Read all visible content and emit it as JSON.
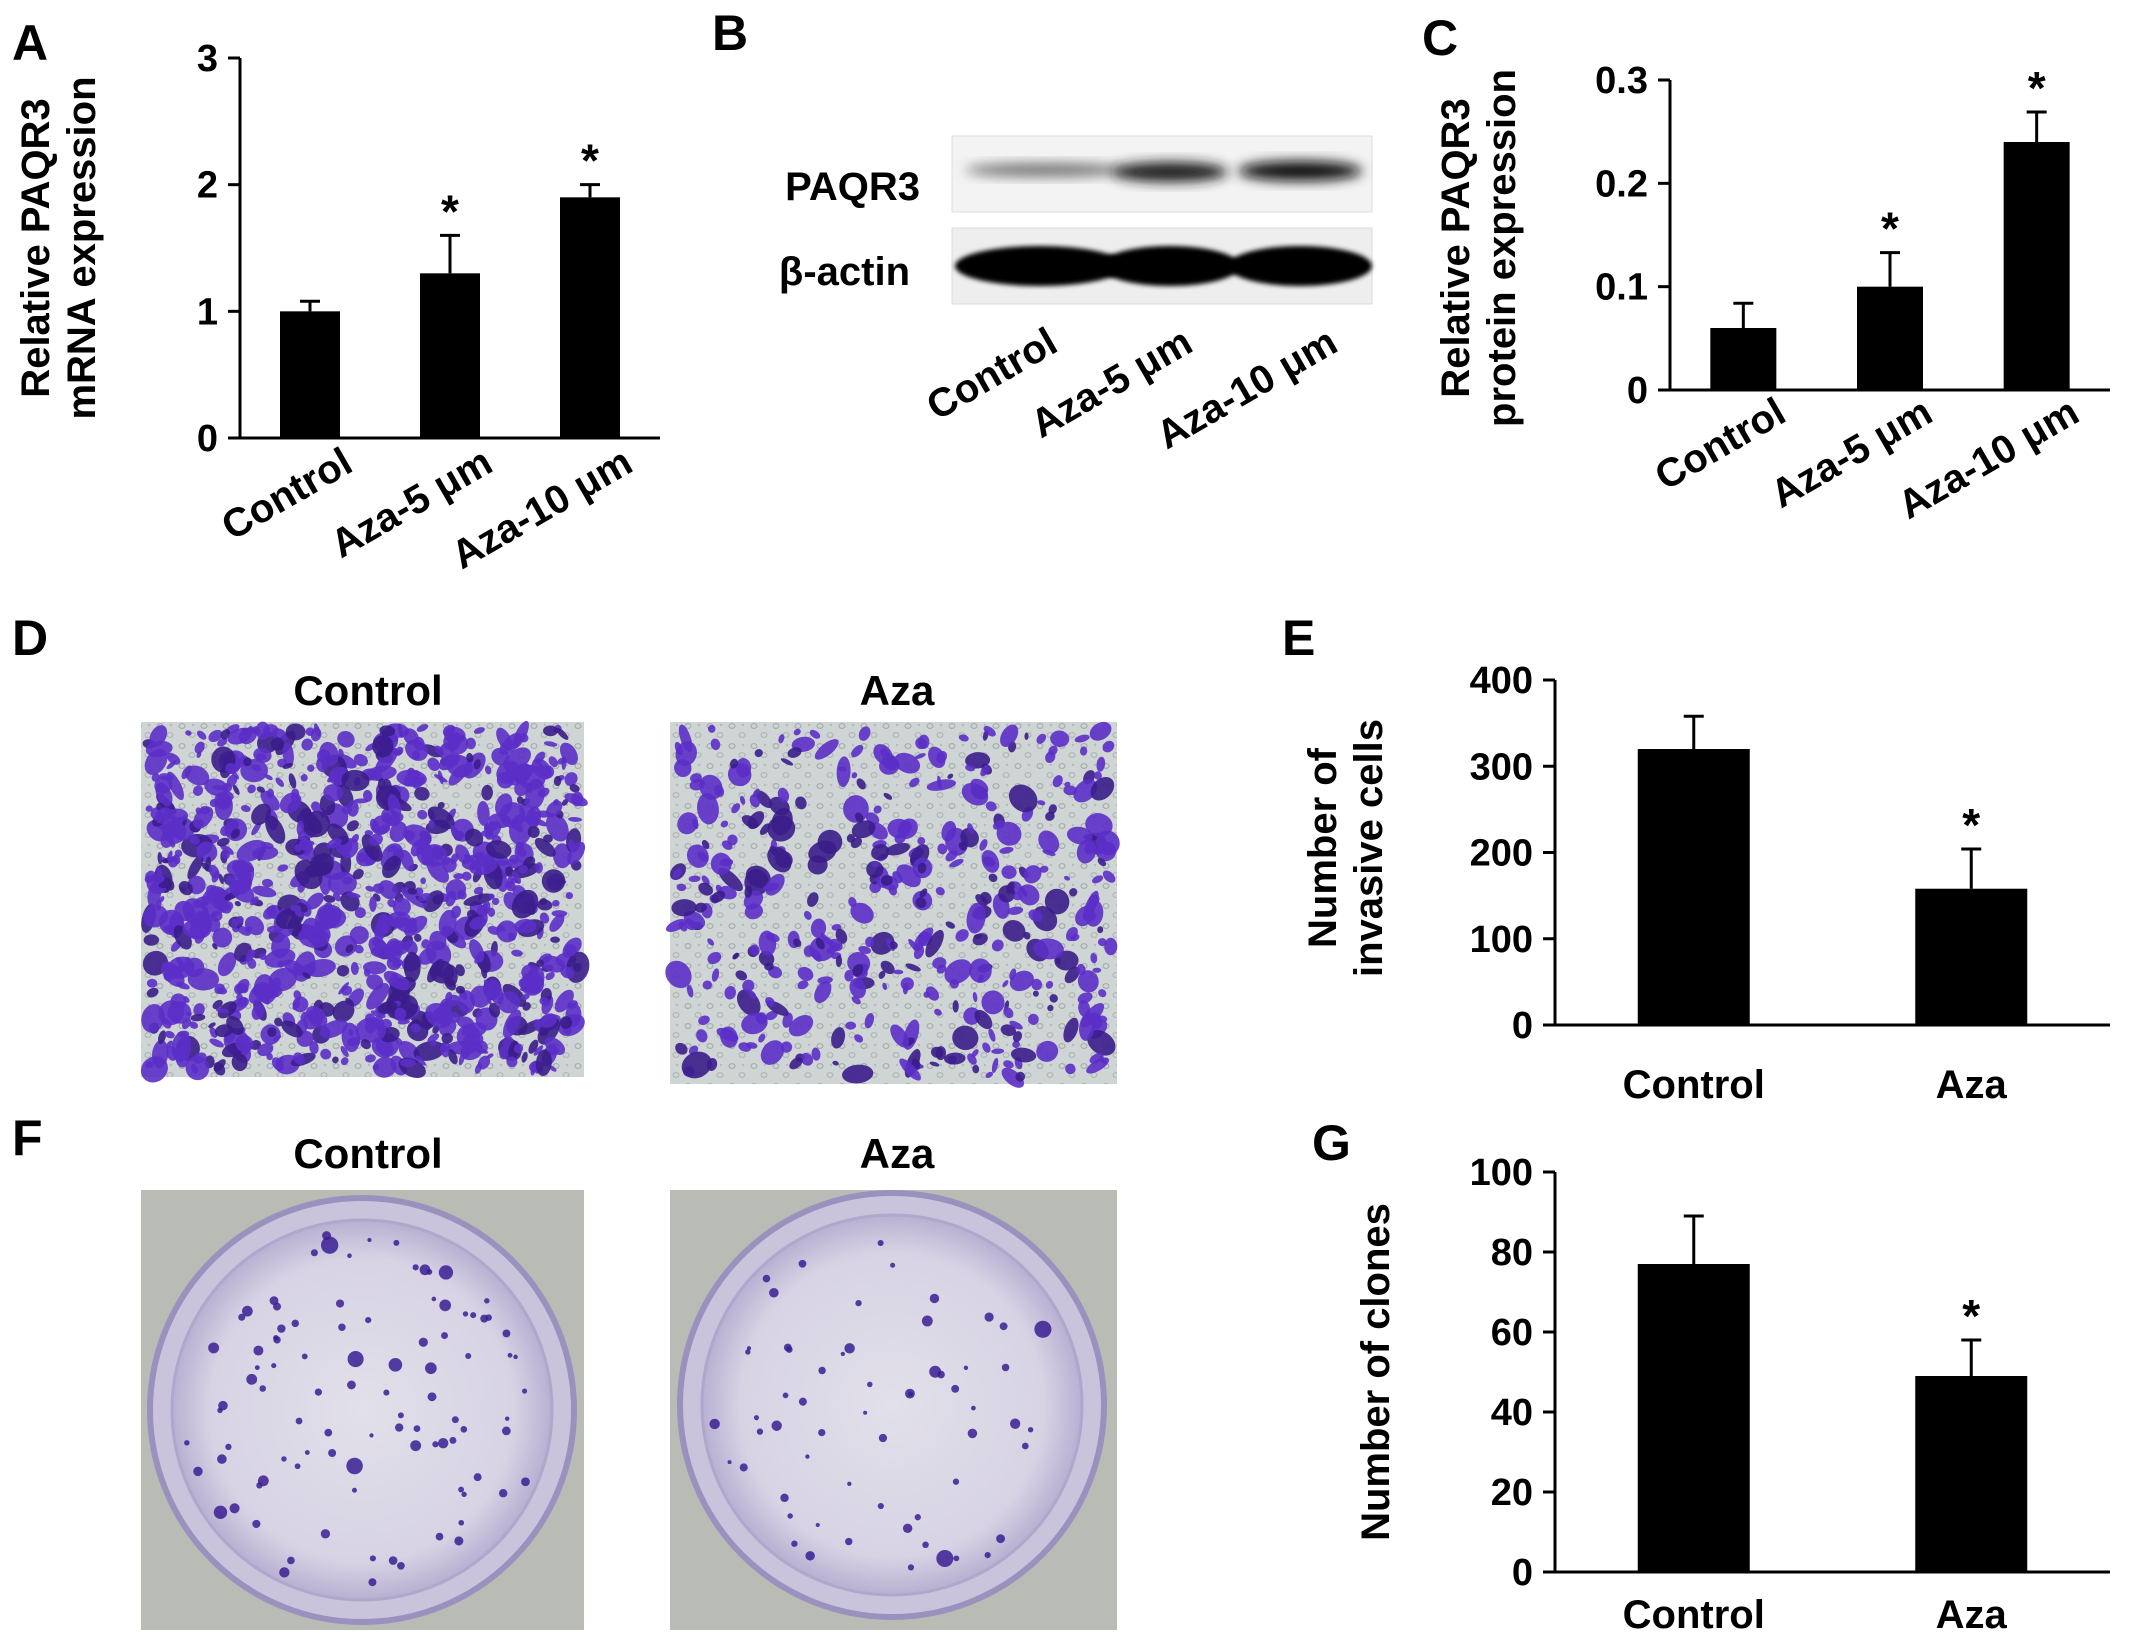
{
  "panels": [
    {
      "letter": "A"
    },
    {
      "letter": "B"
    },
    {
      "letter": "C"
    },
    {
      "letter": "D"
    },
    {
      "letter": "E"
    },
    {
      "letter": "F"
    },
    {
      "letter": "G"
    }
  ],
  "colors": {
    "bar": "#000000",
    "stain": "#5b2fc8",
    "stain_dark": "#3a1d8a",
    "background_cells": "#cdd3d2",
    "dish_bg": "#b7bab4",
    "dish": "#ddd9e8"
  },
  "western_blot": {
    "rows": [
      "PAQR3",
      "β-actin"
    ],
    "lanes": [
      "Control",
      "Aza-5 μm",
      "Aza-10 μm"
    ]
  },
  "image_panels": {
    "D": {
      "titles": [
        "Control",
        "Aza"
      ]
    },
    "F": {
      "titles": [
        "Control",
        "Aza"
      ]
    }
  },
  "chart_data": [
    {
      "id": "A",
      "type": "bar",
      "categories": [
        "Control",
        "Aza-5 μm",
        "Aza-10 μm"
      ],
      "values": [
        1.0,
        1.3,
        1.9
      ],
      "errors": [
        0.08,
        0.3,
        0.1
      ],
      "significance": [
        "",
        "*",
        "*"
      ],
      "ylabel_lines": [
        "Relative PAQR3",
        "mRNA expression"
      ],
      "ylim": [
        0,
        3
      ],
      "yticks": [
        "0",
        "1",
        "2",
        "3"
      ],
      "ytick_values": [
        0,
        1,
        2,
        3
      ],
      "rotated_labels": true
    },
    {
      "id": "C",
      "type": "bar",
      "categories": [
        "Control",
        "Aza-5 μm",
        "Aza-10 μm"
      ],
      "values": [
        0.06,
        0.1,
        0.24
      ],
      "errors": [
        0.024,
        0.033,
        0.029
      ],
      "significance": [
        "",
        "*",
        "*"
      ],
      "ylabel_lines": [
        "Relative PAQR3",
        "protein expression"
      ],
      "ylim": [
        0,
        0.3
      ],
      "yticks": [
        "0",
        "0.1",
        "0.2",
        "0.3"
      ],
      "ytick_values": [
        0,
        0.1,
        0.2,
        0.3
      ],
      "rotated_labels": true
    },
    {
      "id": "E",
      "type": "bar",
      "categories": [
        "Control",
        "Aza"
      ],
      "values": [
        320,
        158
      ],
      "errors": [
        38,
        46
      ],
      "significance": [
        "",
        "*"
      ],
      "ylabel_lines": [
        "Number of",
        "invasive cells"
      ],
      "ylim": [
        0,
        400
      ],
      "yticks": [
        "0",
        "100",
        "200",
        "300",
        "400"
      ],
      "ytick_values": [
        0,
        100,
        200,
        300,
        400
      ],
      "rotated_labels": false
    },
    {
      "id": "G",
      "type": "bar",
      "categories": [
        "Control",
        "Aza"
      ],
      "values": [
        77,
        49
      ],
      "errors": [
        12,
        9
      ],
      "significance": [
        "",
        "*"
      ],
      "ylabel_lines": [
        "Number of clones"
      ],
      "ylim": [
        0,
        100
      ],
      "yticks": [
        "0",
        "20",
        "40",
        "60",
        "80",
        "100"
      ],
      "ytick_values": [
        0,
        20,
        40,
        60,
        80,
        100
      ],
      "rotated_labels": false
    }
  ]
}
